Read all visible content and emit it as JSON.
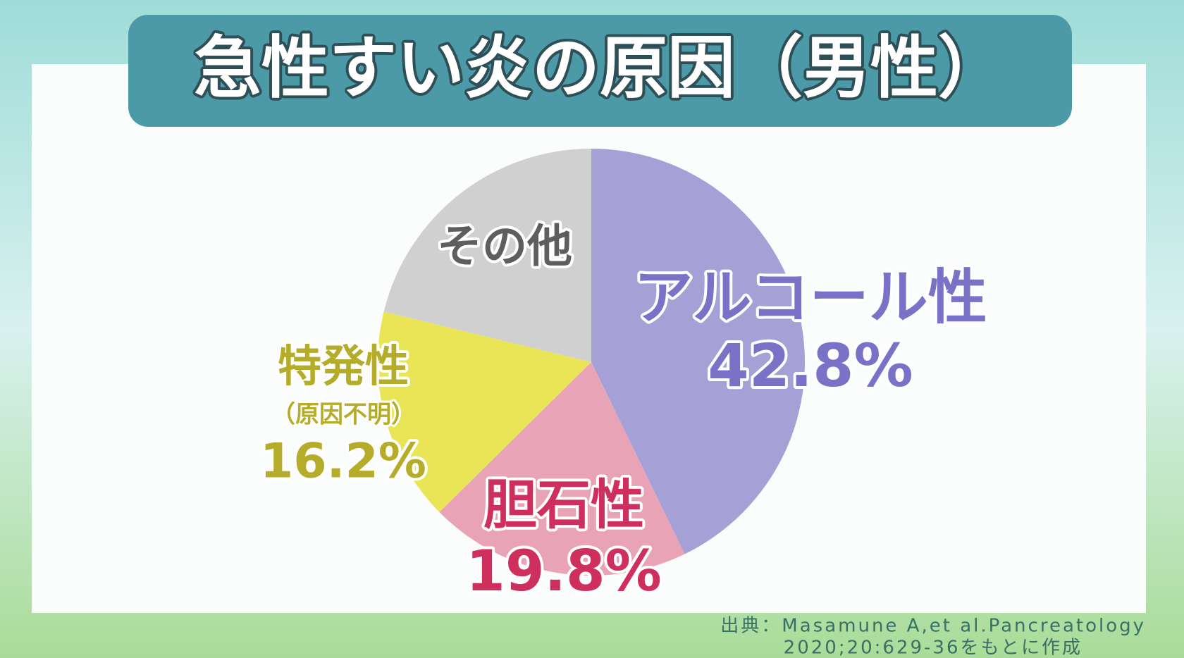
{
  "chart_data": {
    "type": "pie",
    "title": "急性すい炎の原因（男性）",
    "categories": [
      "アルコール性",
      "胆石性",
      "特発性",
      "その他"
    ],
    "category_notes": [
      null,
      null,
      "（原因不明）",
      null
    ],
    "values": [
      42.8,
      19.8,
      16.2,
      21.2
    ],
    "value_labels": [
      "42.8%",
      "19.8%",
      "16.2%",
      null
    ],
    "colors": [
      "#a5a1d7",
      "#e9a3b6",
      "#e9e557",
      "#d0d0d0"
    ],
    "label_colors": [
      "#7a72c6",
      "#cf2f5c",
      "#b5ad29",
      "#5e5e5e"
    ],
    "source": [
      "出典：Masamune A,et al.Pancreatology",
      "2020;20:629-36をもとに作成"
    ]
  }
}
